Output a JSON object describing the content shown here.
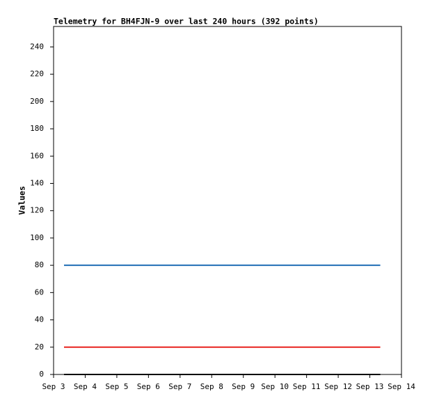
{
  "chart_data": {
    "type": "line",
    "title": "Telemetry for BH4FJN-9 over last 240 hours (392 points)",
    "y_label": "Values",
    "x": [
      3.33,
      13.33
    ],
    "xlim": [
      3,
      14
    ],
    "xticks": [
      {
        "value": 3,
        "label": "Sep 3"
      },
      {
        "value": 4,
        "label": "Sep 4"
      },
      {
        "value": 5,
        "label": "Sep 5"
      },
      {
        "value": 6,
        "label": "Sep 6"
      },
      {
        "value": 7,
        "label": "Sep 7"
      },
      {
        "value": 8,
        "label": "Sep 8"
      },
      {
        "value": 9,
        "label": "Sep 9"
      },
      {
        "value": 10,
        "label": "Sep 10"
      },
      {
        "value": 11,
        "label": "Sep 11"
      },
      {
        "value": 12,
        "label": "Sep 12"
      },
      {
        "value": 13,
        "label": "Sep 13"
      },
      {
        "value": 14,
        "label": "Sep 14"
      }
    ],
    "ylim": [
      0,
      255
    ],
    "yticks": [
      0,
      20,
      40,
      60,
      80,
      100,
      120,
      140,
      160,
      180,
      200,
      220,
      240
    ],
    "grid": false,
    "series": [
      {
        "color": "#1f6db5",
        "values": [
          80,
          80
        ]
      },
      {
        "color": "#e8231e",
        "values": [
          20,
          20
        ]
      },
      {
        "color": "#000000",
        "values": [
          0,
          0
        ]
      }
    ]
  }
}
